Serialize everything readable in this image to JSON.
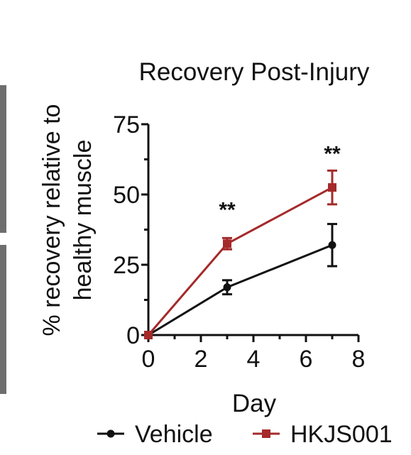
{
  "chart_data": {
    "type": "line",
    "title": "Recovery Post-Injury",
    "xlabel": "Day",
    "ylabel_lines": [
      "% recovery relative to",
      "healthy muscle"
    ],
    "xlim": [
      0,
      8
    ],
    "ylim": [
      0,
      75
    ],
    "xticks": [
      0,
      2,
      4,
      6,
      8
    ],
    "xtick_labels": [
      "0",
      "2",
      "4",
      "6",
      "8"
    ],
    "yticks": [
      0,
      25,
      50,
      75
    ],
    "ytick_labels": [
      "0",
      "25",
      "50",
      "75"
    ],
    "grid": false,
    "legend_position": "bottom",
    "series": [
      {
        "name": "Vehicle",
        "color": "#111111",
        "marker": "circle",
        "x": [
          0,
          3,
          7
        ],
        "y": [
          0,
          17,
          32
        ],
        "err": [
          0,
          2.5,
          7.5
        ]
      },
      {
        "name": "HKJS001",
        "color": "#a52a2a",
        "marker": "square",
        "x": [
          0,
          3,
          7
        ],
        "y": [
          0,
          32.5,
          52.5
        ],
        "err": [
          0,
          2,
          6
        ]
      }
    ],
    "annotations": [
      {
        "text": "**",
        "x": 3,
        "y": 42
      },
      {
        "text": "**",
        "x": 7,
        "y": 62
      }
    ]
  }
}
